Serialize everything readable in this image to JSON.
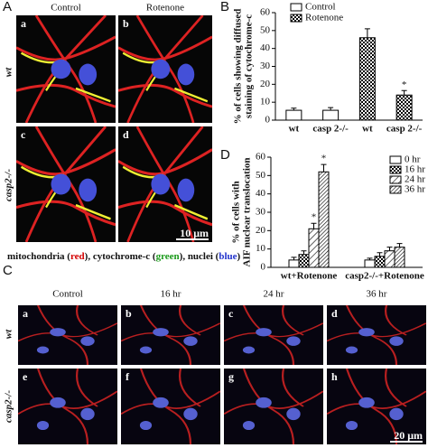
{
  "panel_a": {
    "label": "A",
    "columns": [
      "Control",
      "Rotenone"
    ],
    "rows": [
      "wt",
      "casp2-/-"
    ],
    "images": [
      "a",
      "b",
      "c",
      "d"
    ],
    "scale": "10 μm",
    "caption": [
      {
        "text": "mitochondria ("
      },
      {
        "text": "red",
        "color": "#d40000"
      },
      {
        "text": "), cytochrome-c ("
      },
      {
        "text": "green",
        "color": "#1a9a1a"
      },
      {
        "text": "), nuclei ("
      },
      {
        "text": "blue",
        "color": "#2233cc"
      },
      {
        "text": ")"
      }
    ]
  },
  "chart_data": [
    {
      "type": "bar",
      "label": "B",
      "y_label": [
        "% of cells showing diffused",
        "staining of cytochrome-c"
      ],
      "categories": [
        "wt",
        "casp 2-/-",
        "wt",
        "casp 2-/-"
      ],
      "series": [
        {
          "name": "Control",
          "pattern": "plain",
          "values": [
            5.5,
            5.5,
            null,
            null
          ],
          "errors": [
            1.2,
            1.5,
            null,
            null
          ]
        },
        {
          "name": "Rotenone",
          "pattern": "checker",
          "values": [
            null,
            null,
            46,
            14
          ],
          "errors": [
            null,
            null,
            5,
            2.5
          ],
          "significance": [
            null,
            null,
            null,
            "*"
          ]
        }
      ],
      "ylim": [
        0,
        60
      ],
      "yticks": [
        0,
        10,
        20,
        30,
        40,
        50,
        60
      ],
      "legend": "upper left"
    },
    {
      "type": "bar",
      "label": "D",
      "y_label": [
        "% of cells with",
        "AIF nuclear translocation"
      ],
      "categories": [
        "wt+Rotenone",
        "casp2-/-+Rotenone"
      ],
      "series": [
        {
          "name": "0 hr",
          "pattern": "plain",
          "values": [
            4,
            4
          ],
          "errors": [
            1.5,
            1
          ]
        },
        {
          "name": "16 hr",
          "pattern": "checker",
          "values": [
            7,
            6
          ],
          "errors": [
            2,
            2
          ]
        },
        {
          "name": "24 hr",
          "pattern": "hatch",
          "values": [
            21,
            9
          ],
          "errors": [
            3,
            2
          ],
          "significance": [
            "*",
            null
          ]
        },
        {
          "name": "36 hr",
          "pattern": "hatch-dense",
          "values": [
            52,
            11
          ],
          "errors": [
            4,
            2
          ],
          "significance": [
            "*",
            null
          ]
        }
      ],
      "ylim": [
        0,
        60
      ],
      "yticks": [
        0,
        10,
        20,
        30,
        40,
        50,
        60
      ],
      "legend": "upper right"
    }
  ],
  "panel_c": {
    "label": "C",
    "columns": [
      "Control",
      "16 hr",
      "24 hr",
      "36 hr"
    ],
    "rows": [
      "wt",
      "casp2-/-"
    ],
    "images": [
      "a",
      "b",
      "c",
      "d",
      "e",
      "f",
      "g",
      "h"
    ],
    "scale": "20 μm"
  }
}
